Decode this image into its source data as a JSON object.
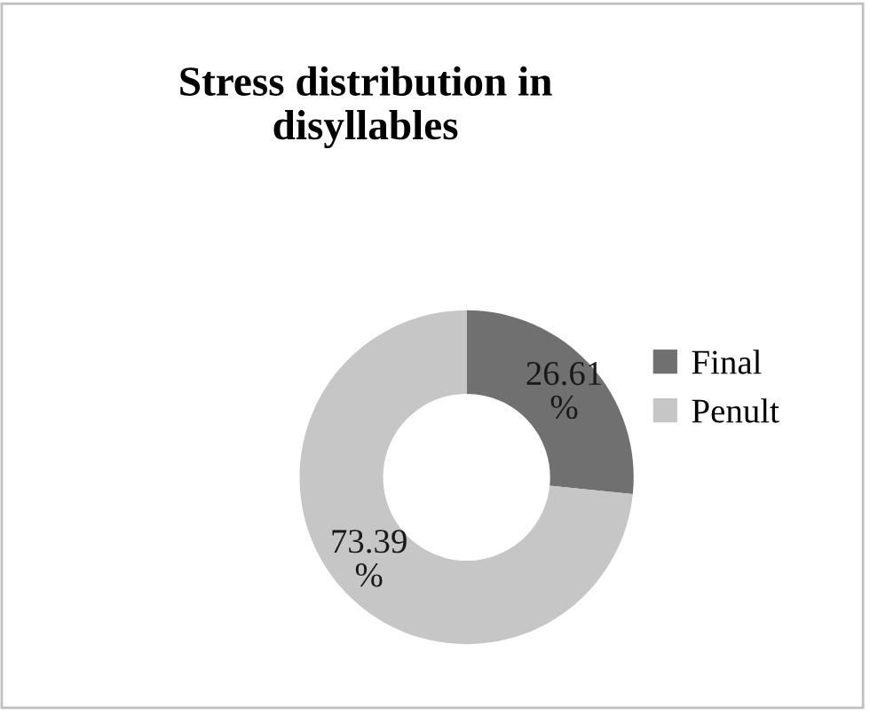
{
  "chart_data": {
    "type": "donut",
    "title": "Stress distribution in disyllables",
    "categories": [
      "Final",
      "Penult"
    ],
    "values": [
      26.61,
      73.39
    ],
    "colors": [
      "#707070",
      "#c6c6c6"
    ],
    "value_labels": [
      "26.61%",
      "73.39%"
    ],
    "legend": "right"
  }
}
